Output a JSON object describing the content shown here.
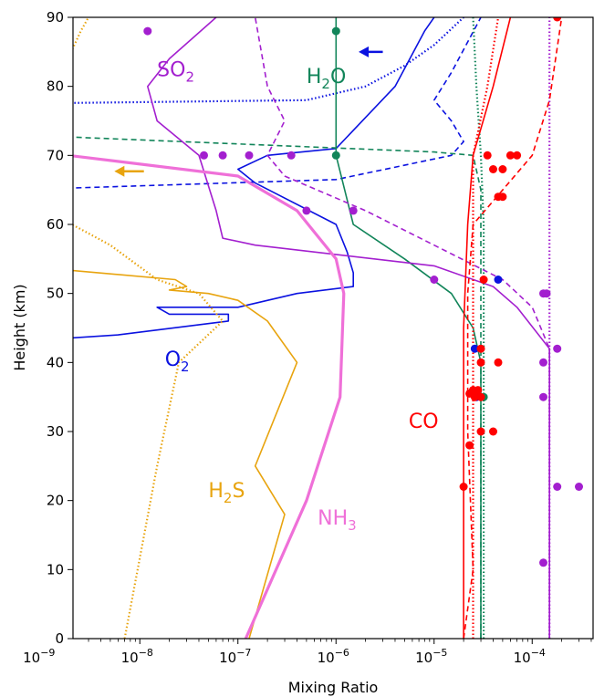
{
  "chart_data": {
    "type": "line",
    "xlabel": "Mixing Ratio",
    "ylabel": "Height (km)",
    "xscale": "log",
    "xlim": [
      5e-10,
      0.0005
    ],
    "ylim": [
      0,
      90
    ],
    "x_ticks": [
      {
        "value": 1e-09,
        "base": "10",
        "exp": "−9"
      },
      {
        "value": 1e-08,
        "base": "10",
        "exp": "−8"
      },
      {
        "value": 1e-07,
        "base": "10",
        "exp": "−7"
      },
      {
        "value": 1e-06,
        "base": "10",
        "exp": "−6"
      },
      {
        "value": 1e-05,
        "base": "10",
        "exp": "−5"
      },
      {
        "value": 0.0001,
        "base": "10",
        "exp": "−4"
      }
    ],
    "y_ticks": [
      0,
      10,
      20,
      30,
      40,
      50,
      60,
      70,
      80,
      90
    ],
    "labels": [
      {
        "id": "so2",
        "base": "SO",
        "sub": "2",
        "color": "#a31fcf",
        "x": 1.5e-08,
        "y": 81.5
      },
      {
        "id": "h2o",
        "base": "H",
        "sub": "2",
        "tail": "O",
        "color": "#12855a",
        "x": 5e-07,
        "y": 80.5
      },
      {
        "id": "o2",
        "base": "O",
        "sub": "2",
        "color": "#0b12e0",
        "x": 1.8e-08,
        "y": 39.5
      },
      {
        "id": "h2s",
        "base": "H",
        "sub": "2",
        "tail": "S",
        "color": "#e8a40f",
        "x": 5e-08,
        "y": 20.5
      },
      {
        "id": "nh3",
        "base": "NH",
        "sub": "3",
        "color": "#ef70d8",
        "x": 6.5e-07,
        "y": 16.5
      },
      {
        "id": "co",
        "base": "CO",
        "sub": "",
        "color": "#ff0000",
        "x": 5.5e-06,
        "y": 30.5
      }
    ],
    "series": [
      {
        "species": "O2",
        "color": "#0b12e0",
        "style": "solid",
        "points": [
          [
            5e-10,
            43
          ],
          [
            6e-09,
            44
          ],
          [
            8e-08,
            46
          ],
          [
            8e-08,
            47
          ],
          [
            2e-08,
            47
          ],
          [
            1.5e-08,
            48
          ],
          [
            1e-07,
            48
          ],
          [
            4e-07,
            50
          ],
          [
            1.5e-06,
            51
          ],
          [
            1.5e-06,
            53
          ],
          [
            1.3e-06,
            56
          ],
          [
            1e-06,
            60
          ],
          [
            1.5e-07,
            66
          ],
          [
            1e-07,
            68
          ],
          [
            2e-07,
            70
          ],
          [
            1e-06,
            71
          ],
          [
            4e-06,
            80
          ],
          [
            8e-06,
            88
          ],
          [
            1e-05,
            90
          ]
        ]
      },
      {
        "species": "O2",
        "color": "#0b12e0",
        "style": "dashed",
        "points": [
          [
            5e-10,
            65
          ],
          [
            1e-06,
            66.5
          ],
          [
            1.5e-05,
            70
          ],
          [
            2e-05,
            72
          ],
          [
            1.5e-05,
            75
          ],
          [
            1e-05,
            78
          ],
          [
            1.5e-05,
            82
          ],
          [
            3e-05,
            90
          ]
        ]
      },
      {
        "species": "O2",
        "color": "#0b12e0",
        "style": "dotted",
        "points": [
          [
            5e-10,
            77.5
          ],
          [
            5e-07,
            78
          ],
          [
            2e-06,
            80
          ],
          [
            5e-06,
            83
          ],
          [
            1e-05,
            86
          ],
          [
            2e-05,
            90
          ]
        ]
      },
      {
        "species": "H2O",
        "color": "#12855a",
        "style": "solid",
        "points": [
          [
            3e-05,
            0
          ],
          [
            3e-05,
            30
          ],
          [
            3e-05,
            40
          ],
          [
            2.5e-05,
            45
          ],
          [
            1.5e-05,
            50
          ],
          [
            5e-06,
            55
          ],
          [
            1.5e-06,
            60
          ],
          [
            1e-06,
            70
          ],
          [
            1e-06,
            90
          ]
        ]
      },
      {
        "species": "H2O",
        "color": "#12855a",
        "style": "dashed",
        "points": [
          [
            3e-05,
            0
          ],
          [
            3e-05,
            45
          ],
          [
            3e-05,
            55
          ],
          [
            3e-05,
            65
          ],
          [
            2.5e-05,
            70
          ],
          [
            1e-05,
            70.5
          ],
          [
            5e-10,
            73
          ]
        ]
      },
      {
        "species": "H2O",
        "color": "#12855a",
        "style": "dotted",
        "points": [
          [
            3.2e-05,
            0
          ],
          [
            3.2e-05,
            60
          ],
          [
            3e-05,
            70
          ],
          [
            2.7e-05,
            80
          ],
          [
            2.5e-05,
            90
          ]
        ]
      },
      {
        "species": "SO2",
        "color": "#a31fcf",
        "style": "solid",
        "points": [
          [
            0.00015,
            0
          ],
          [
            0.00015,
            42
          ],
          [
            7e-05,
            48
          ],
          [
            4e-05,
            51
          ],
          [
            1e-05,
            54
          ],
          [
            1.5e-07,
            57
          ],
          [
            7e-08,
            58
          ],
          [
            6e-08,
            62
          ],
          [
            4e-08,
            70
          ],
          [
            1.5e-08,
            75
          ],
          [
            1.2e-08,
            80
          ],
          [
            2e-08,
            84
          ],
          [
            6e-08,
            90
          ]
        ]
      },
      {
        "species": "SO2",
        "color": "#a31fcf",
        "style": "dashed",
        "points": [
          [
            0.00015,
            0
          ],
          [
            0.00015,
            42
          ],
          [
            0.0001,
            48
          ],
          [
            5e-05,
            52
          ],
          [
            2e-06,
            62
          ],
          [
            3e-07,
            67
          ],
          [
            2e-07,
            70
          ],
          [
            3e-07,
            75
          ],
          [
            2e-07,
            80
          ],
          [
            1.5e-07,
            90
          ]
        ]
      },
      {
        "species": "SO2",
        "color": "#a31fcf",
        "style": "dotted",
        "points": [
          [
            0.00015,
            0
          ],
          [
            0.00015,
            90
          ]
        ]
      },
      {
        "species": "H2S",
        "color": "#e8a40f",
        "style": "solid",
        "points": [
          [
            1.3e-07,
            0
          ],
          [
            3e-07,
            18
          ],
          [
            1.5e-07,
            25
          ],
          [
            4e-07,
            40
          ],
          [
            2e-07,
            46
          ],
          [
            1e-07,
            49
          ],
          [
            5e-08,
            50
          ],
          [
            2e-08,
            50.5
          ],
          [
            3e-08,
            51
          ],
          [
            2.3e-08,
            52
          ],
          [
            1.5e-09,
            53.5
          ],
          [
            5e-10,
            53.5
          ]
        ]
      },
      {
        "species": "H2S",
        "color": "#e8a40f",
        "style": "dashed",
        "points": [
          [
            1e-09,
            0
          ],
          [
            1e-09,
            65
          ],
          [
            1.2e-09,
            72
          ],
          [
            7e-10,
            72
          ],
          [
            5e-10,
            72
          ]
        ]
      },
      {
        "species": "H2S",
        "color": "#e8a40f",
        "style": "dotted",
        "points": [
          [
            7e-09,
            0
          ],
          [
            1.5e-08,
            25
          ],
          [
            2.5e-08,
            40
          ],
          [
            7e-08,
            46
          ],
          [
            4e-08,
            50
          ],
          [
            1.5e-08,
            52
          ],
          [
            5e-09,
            57
          ],
          [
            1.5e-09,
            61
          ],
          [
            5e-10,
            63.5
          ]
        ]
      },
      {
        "species": "H2S",
        "color": "#e8a40f",
        "style": "dotted",
        "points": [
          [
            5e-10,
            84
          ],
          [
            2e-09,
            85
          ],
          [
            2.5e-09,
            88
          ],
          [
            3e-09,
            90
          ]
        ]
      },
      {
        "species": "NH3",
        "color": "#ef70d8",
        "style": "thick",
        "points": [
          [
            1.2e-07,
            0
          ],
          [
            5e-07,
            20
          ],
          [
            1.1e-06,
            35
          ],
          [
            1.2e-06,
            50
          ],
          [
            1e-06,
            55
          ],
          [
            4e-07,
            62
          ],
          [
            1e-07,
            67
          ],
          [
            5e-10,
            71
          ]
        ]
      },
      {
        "species": "CO",
        "color": "#ff0000",
        "style": "solid",
        "points": [
          [
            2e-05,
            0
          ],
          [
            2e-05,
            45
          ],
          [
            2.2e-05,
            60
          ],
          [
            2.5e-05,
            70
          ],
          [
            4e-05,
            80
          ],
          [
            6e-05,
            90
          ]
        ]
      },
      {
        "species": "CO",
        "color": "#ff0000",
        "style": "dashed",
        "points": [
          [
            2e-05,
            0
          ],
          [
            2.5e-05,
            10
          ],
          [
            2.2e-05,
            30
          ],
          [
            2.2e-05,
            50
          ],
          [
            2.5e-05,
            60
          ],
          [
            5e-05,
            65
          ],
          [
            0.0001,
            70
          ],
          [
            0.00015,
            78
          ],
          [
            0.0002,
            90
          ]
        ]
      },
      {
        "species": "CO",
        "color": "#ff0000",
        "style": "dotted",
        "points": [
          [
            2.5e-05,
            0
          ],
          [
            2.5e-05,
            60
          ],
          [
            2.5e-05,
            70
          ],
          [
            3.5e-05,
            80
          ],
          [
            4.5e-05,
            90
          ]
        ]
      }
    ],
    "observations": [
      {
        "species": "SO2",
        "color": "#a31fcf",
        "points": [
          [
            1.2e-08,
            88
          ],
          [
            4.5e-08,
            70
          ],
          [
            7e-08,
            70
          ],
          [
            1.3e-07,
            70
          ],
          [
            3.5e-07,
            70
          ],
          [
            5e-07,
            62
          ],
          [
            1.5e-06,
            62
          ],
          [
            1e-05,
            52
          ],
          [
            0.00013,
            50
          ],
          [
            0.00014,
            50
          ],
          [
            0.00018,
            42
          ],
          [
            0.00013,
            40
          ],
          [
            0.00013,
            35
          ],
          [
            0.00018,
            22
          ],
          [
            0.0003,
            22
          ],
          [
            0.00013,
            11
          ]
        ]
      },
      {
        "species": "H2O",
        "color": "#12855a",
        "points": [
          [
            1e-06,
            88
          ],
          [
            1e-06,
            70
          ],
          [
            3.2e-05,
            35
          ]
        ]
      },
      {
        "species": "O2",
        "color": "#0b12e0",
        "points": [
          [
            4.5e-05,
            52
          ],
          [
            2.6e-05,
            42
          ],
          [
            2.7e-05,
            35
          ]
        ]
      },
      {
        "species": "CO",
        "color": "#ff0000",
        "points": [
          [
            0.00018,
            90
          ],
          [
            3.5e-05,
            70
          ],
          [
            6e-05,
            70
          ],
          [
            7e-05,
            70
          ],
          [
            4e-05,
            68
          ],
          [
            5e-05,
            68
          ],
          [
            4.5e-05,
            64
          ],
          [
            5e-05,
            64
          ],
          [
            3.2e-05,
            52
          ],
          [
            3e-05,
            42
          ],
          [
            3e-05,
            40
          ],
          [
            4.5e-05,
            40
          ],
          [
            2.5e-05,
            36
          ],
          [
            2.8e-05,
            36
          ],
          [
            2.3e-05,
            35.5
          ],
          [
            2.6e-05,
            35
          ],
          [
            3e-05,
            35
          ],
          [
            3e-05,
            30
          ],
          [
            4e-05,
            30
          ],
          [
            2.3e-05,
            28
          ],
          [
            2e-05,
            22
          ]
        ]
      }
    ],
    "arrows": [
      {
        "color": "#0b12e0",
        "from": [
          3e-06,
          85
        ],
        "to": [
          1.7e-06,
          85
        ]
      },
      {
        "color": "#e8a40f",
        "from": [
          1.1e-08,
          67.7
        ],
        "to": [
          5.5e-09,
          67.7
        ]
      }
    ]
  }
}
